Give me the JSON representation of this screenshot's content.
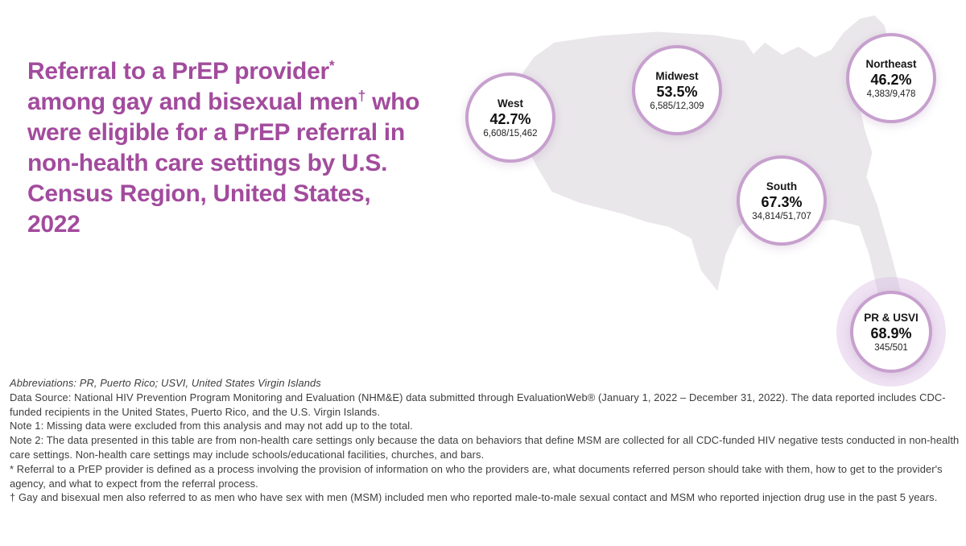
{
  "title": {
    "lines": [
      "Referral to a PrEP provider*",
      "among gay and bisexual men† who",
      "were eligible for a PrEP referral in",
      "non-health care settings by U.S.",
      "Census Region, United States,",
      "2022"
    ]
  },
  "regions": [
    {
      "name": "West",
      "percent": "42.7%",
      "fraction": "6,608/15,462"
    },
    {
      "name": "Midwest",
      "percent": "53.5%",
      "fraction": "6,585/12,309"
    },
    {
      "name": "Northeast",
      "percent": "46.2%",
      "fraction": "4,383/9,478"
    },
    {
      "name": "South",
      "percent": "67.3%",
      "fraction": "34,814/51,707"
    },
    {
      "name": "PR & USVI",
      "percent": "68.9%",
      "fraction": "345/501"
    }
  ],
  "footnotes": [
    "Abbreviations: PR, Puerto Rico; USVI, United States Virgin Islands",
    "Data Source: National HIV Prevention Program Monitoring and Evaluation (NHM&E) data submitted through EvaluationWeb® (January 1, 2022 – December 31, 2022). The data reported includes CDC-funded recipients in the United States, Puerto Rico, and the U.S. Virgin Islands.",
    "Note 1: Missing data were excluded from this analysis and may not add up to the total.",
    "Note 2: The data presented in this table are from non-health care settings only because the data on behaviors that define MSM are collected for all CDC-funded HIV negative tests conducted in non-health care settings. Non-health care settings may include schools/educational facilities, churches, and bars.",
    "* Referral to a PrEP provider is defined as a process involving the provision of information on who the providers are, what documents referred person should take with them, how to get to the provider's agency, and what to expect from the referral process.",
    "† Gay and bisexual men also referred to as men who have sex with men (MSM) included men who reported male-to-male sexual contact and MSM who reported injection drug use in the past 5 years."
  ],
  "colors": {
    "title": "#A24B9D",
    "bubble_ring": "#C7A0CE",
    "halo": "#DBBFE4",
    "map_fill": "#EAE7EB"
  },
  "chart_data": {
    "type": "map_bubbles",
    "title": "Referral to a PrEP provider among gay and bisexual men who were eligible for a PrEP referral in non-health care settings by U.S. Census Region, United States, 2022",
    "unit": "percent referred (numerator/denominator)",
    "regions": [
      {
        "name": "West",
        "percent": 42.7,
        "numerator": 6608,
        "denominator": 15462
      },
      {
        "name": "Midwest",
        "percent": 53.5,
        "numerator": 6585,
        "denominator": 12309
      },
      {
        "name": "Northeast",
        "percent": 46.2,
        "numerator": 4383,
        "denominator": 9478
      },
      {
        "name": "South",
        "percent": 67.3,
        "numerator": 34814,
        "denominator": 51707
      },
      {
        "name": "PR & USVI",
        "percent": 68.9,
        "numerator": 345,
        "denominator": 501
      }
    ]
  }
}
